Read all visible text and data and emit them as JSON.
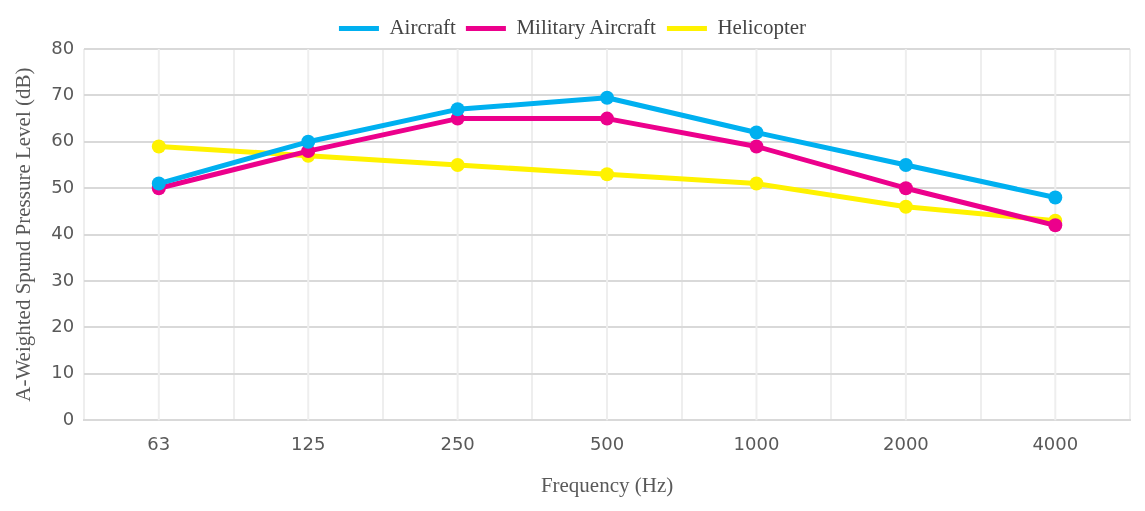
{
  "chart_data": {
    "type": "line",
    "xlabel": "Frequency (Hz)",
    "ylabel": "A-Weighted Spund Pressure Level (dB)",
    "categories": [
      "63",
      "125",
      "250",
      "500",
      "1000",
      "2000",
      "4000"
    ],
    "series": [
      {
        "name": "Aircraft",
        "color": "#00b0f0",
        "values": [
          51,
          60,
          67,
          69.5,
          62,
          55,
          48
        ]
      },
      {
        "name": "Military Aircraft",
        "color": "#ec008c",
        "values": [
          50,
          58,
          65,
          65,
          59,
          50,
          42
        ]
      },
      {
        "name": "Helicopter",
        "color": "#fff200",
        "values": [
          59,
          57,
          55,
          53,
          51,
          46,
          43
        ]
      }
    ],
    "ylim": [
      0,
      80
    ],
    "yticks": [
      0,
      10,
      20,
      30,
      40,
      50,
      60,
      70,
      80
    ],
    "grid": true,
    "legend": "top",
    "marker": "circle",
    "line_style": "solid"
  }
}
